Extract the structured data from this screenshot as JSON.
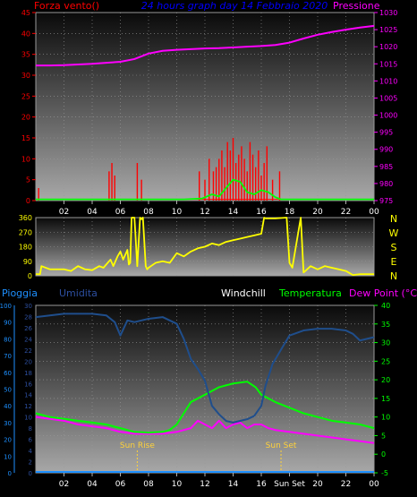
{
  "colors": {
    "wind": "#ff0000",
    "gust": "#00ff00",
    "pressure": "#ff00ff",
    "title": "#0000ff",
    "direction": "#ffff00",
    "rain": "#1e90ff",
    "humidity": "#2d4fa0",
    "humidity_line": "#1f4e8c",
    "windchill": "#ffffff",
    "temperature": "#00ff00",
    "dewpoint": "#ff00ff",
    "sun": "#ffd23a",
    "axis": "#b0b0b0"
  },
  "chart_data": [
    {
      "type": "line",
      "title": "24 hours graph day  14 Febbraio 2020",
      "left_label": "Forza vento()",
      "right_label": "Pressione",
      "x_ticks": [
        "02",
        "04",
        "06",
        "08",
        "10",
        "12",
        "14",
        "16",
        "18",
        "20",
        "22",
        "00"
      ],
      "y_left": {
        "ylim": [
          0,
          45
        ],
        "ticks": [
          0,
          5,
          10,
          15,
          20,
          25,
          30,
          35,
          40,
          45
        ]
      },
      "y_right": {
        "ylim": [
          975,
          1030
        ],
        "ticks": [
          975,
          980,
          985,
          990,
          995,
          1000,
          1005,
          1010,
          1015,
          1020,
          1025,
          1030
        ]
      },
      "series": [
        {
          "key": "pressure",
          "axis": "right",
          "x": [
            0,
            1,
            2,
            3,
            4,
            5,
            6,
            7,
            8,
            9,
            10,
            11,
            12,
            13,
            14,
            15,
            16,
            17,
            18,
            19,
            20,
            21,
            22,
            23,
            24
          ],
          "values": [
            1014.5,
            1014.5,
            1014.6,
            1014.8,
            1015.0,
            1015.3,
            1015.6,
            1016.4,
            1018.0,
            1018.8,
            1019.1,
            1019.3,
            1019.5,
            1019.6,
            1019.8,
            1020.0,
            1020.2,
            1020.5,
            1021.2,
            1022.4,
            1023.5,
            1024.3,
            1025.0,
            1025.6,
            1026.1
          ]
        },
        {
          "key": "wind",
          "axis": "left",
          "style": "spikes",
          "x": [
            0.2,
            5.2,
            5.4,
            5.6,
            7.2,
            7.5,
            11.6,
            12.0,
            12.3,
            12.6,
            12.8,
            13.0,
            13.2,
            13.4,
            13.6,
            13.8,
            14.0,
            14.2,
            14.4,
            14.6,
            14.8,
            15.0,
            15.2,
            15.4,
            15.6,
            15.8,
            16.0,
            16.2,
            16.4,
            16.8,
            17.3
          ],
          "values": [
            3,
            7,
            9,
            6,
            9,
            5,
            7,
            5,
            10,
            7,
            8,
            10,
            12,
            8,
            14,
            12,
            15,
            9,
            11,
            13,
            10,
            7,
            14,
            11,
            8,
            12,
            6,
            9,
            13,
            5,
            7
          ]
        },
        {
          "key": "gust",
          "axis": "left",
          "x": [
            0,
            10.5,
            11.8,
            12.5,
            13.0,
            13.5,
            14.0,
            14.5,
            15.0,
            15.5,
            16.0,
            16.5,
            17.0,
            17.4,
            24
          ],
          "values": [
            0.3,
            0.3,
            0.5,
            1.5,
            1.0,
            3.0,
            5.0,
            4.5,
            2.0,
            1.5,
            2.5,
            2.0,
            0.8,
            0.3,
            0.3
          ]
        }
      ]
    },
    {
      "type": "line",
      "title": "",
      "right_letters": [
        "N",
        "W",
        "S",
        "E",
        "N"
      ],
      "y_left": {
        "ylim": [
          0,
          360
        ],
        "ticks": [
          0,
          90,
          180,
          270,
          360
        ]
      },
      "series": [
        {
          "key": "direction",
          "x": [
            0,
            0.3,
            0.4,
            1.0,
            2.0,
            2.5,
            3.0,
            3.5,
            4.0,
            4.5,
            4.8,
            5.0,
            5.3,
            5.5,
            5.8,
            6.0,
            6.2,
            6.5,
            6.6,
            6.7,
            6.8,
            7.0,
            7.2,
            7.4,
            7.5,
            7.6,
            7.8,
            7.9,
            8.0,
            8.5,
            9.0,
            9.5,
            10.0,
            10.5,
            11.0,
            11.5,
            12.0,
            12.5,
            13.0,
            13.5,
            14.0,
            14.5,
            15.0,
            15.5,
            16.0,
            16.2,
            16.3,
            17.0,
            17.8,
            18.0,
            18.2,
            18.8,
            19.0,
            19.5,
            20.0,
            20.5,
            21.0,
            21.5,
            22.0,
            22.5,
            23.0,
            24
          ],
          "values": [
            10,
            10,
            60,
            40,
            40,
            30,
            60,
            40,
            35,
            60,
            50,
            70,
            100,
            60,
            120,
            150,
            100,
            160,
            70,
            80,
            360,
            360,
            60,
            360,
            350,
            360,
            60,
            40,
            50,
            80,
            90,
            80,
            140,
            120,
            150,
            170,
            180,
            200,
            190,
            210,
            220,
            230,
            240,
            250,
            260,
            360,
            355,
            355,
            360,
            80,
            50,
            360,
            20,
            60,
            40,
            60,
            50,
            40,
            30,
            5,
            10,
            10
          ]
        }
      ]
    },
    {
      "type": "line",
      "labels": {
        "rain": "Pioggia",
        "humidity": "Umidita",
        "windchill": "Windchill",
        "temperature": "Temperatura",
        "dewpoint": "Dew Point (°C)",
        "sunrise": "Sun Rise",
        "sunset": "Sun Set"
      },
      "x_ticks": [
        "02",
        "04",
        "06",
        "08",
        "10",
        "12",
        "14",
        "16",
        "Sun Set",
        "20",
        "22",
        "00"
      ],
      "sunrise_hour": 7.2,
      "sunset_hour": 17.4,
      "y_far_left": {
        "ylim": [
          0,
          100
        ],
        "ticks": [
          0,
          10,
          20,
          30,
          40,
          50,
          60,
          70,
          80,
          90,
          100
        ]
      },
      "y_left": {
        "ylim": [
          0,
          30
        ],
        "ticks": [
          0,
          2,
          4,
          6,
          8,
          10,
          12,
          14,
          16,
          18,
          20,
          22,
          24,
          26,
          28,
          30
        ]
      },
      "y_right": {
        "ylim": [
          -5,
          40
        ],
        "ticks": [
          -5,
          0,
          5,
          10,
          15,
          20,
          25,
          30,
          35,
          40
        ]
      },
      "series": [
        {
          "key": "humidity",
          "axis": "far_left",
          "x": [
            0,
            1,
            2,
            3,
            4,
            5,
            5.6,
            6.0,
            6.5,
            7.0,
            8.0,
            9.0,
            10.0,
            10.5,
            11.0,
            11.5,
            12.0,
            12.5,
            13.0,
            13.5,
            14.0,
            14.5,
            15.0,
            15.5,
            16.0,
            16.3,
            16.8,
            17.5,
            18.0,
            19.0,
            20.0,
            21.0,
            22.0,
            22.5,
            23.0,
            24
          ],
          "values": [
            93,
            94,
            95,
            95,
            95,
            94,
            90,
            82,
            91,
            90,
            92,
            93,
            89,
            80,
            68,
            62,
            55,
            40,
            35,
            31,
            30,
            31,
            32,
            34,
            40,
            52,
            65,
            75,
            82,
            85,
            86,
            86,
            85,
            83,
            79,
            81
          ]
        },
        {
          "key": "temperature",
          "axis": "right",
          "x": [
            0,
            1,
            2,
            3,
            4,
            5,
            6,
            7,
            8,
            9,
            9.5,
            10,
            10.5,
            11,
            12,
            13,
            14,
            15,
            15.6,
            16,
            17,
            18,
            19,
            20,
            21,
            22,
            23,
            24
          ],
          "values": [
            11,
            10,
            9.5,
            9,
            8.5,
            8,
            7,
            6,
            5.8,
            6,
            6.5,
            8,
            11,
            14,
            16,
            18,
            19,
            19.5,
            18,
            16,
            14,
            12.5,
            11,
            10,
            9,
            8.5,
            8,
            7
          ]
        },
        {
          "key": "dewpoint",
          "axis": "right",
          "x": [
            0,
            1,
            2,
            3,
            4,
            5,
            6,
            7,
            8,
            9,
            10,
            11,
            11.5,
            12,
            12.5,
            13,
            13.5,
            14,
            14.5,
            15,
            15.5,
            16,
            16.5,
            17,
            18,
            19,
            20,
            21,
            22,
            23,
            24
          ],
          "values": [
            10,
            9.5,
            9,
            8,
            7.5,
            7,
            6,
            5.5,
            5.5,
            5.5,
            6,
            7,
            9,
            8,
            7,
            9,
            7,
            8,
            8.5,
            7,
            8,
            8,
            7,
            6.5,
            6,
            5.5,
            5,
            4.5,
            4,
            3.5,
            3
          ]
        },
        {
          "key": "rain",
          "axis": "left",
          "x": [
            0,
            24
          ],
          "values": [
            0,
            0
          ]
        }
      ]
    }
  ]
}
